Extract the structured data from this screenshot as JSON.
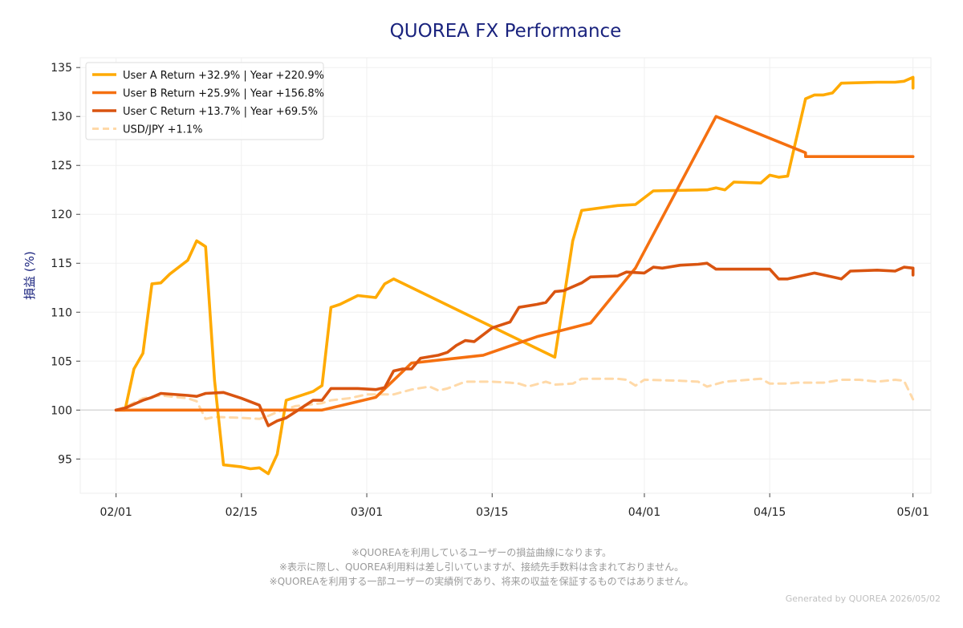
{
  "title": "QUOREA FX Performance",
  "chart_data": {
    "type": "line",
    "title": "QUOREA FX Performance",
    "ylabel": "損益 (%)",
    "xlabel": "",
    "ylim": [
      91.5,
      136
    ],
    "xlim": [
      "2025-01-28",
      "2025-05-03"
    ],
    "yticks": [
      95,
      100,
      105,
      110,
      115,
      120,
      125,
      130,
      135
    ],
    "xticks": [
      {
        "label": "02/01",
        "date": "2025-02-01"
      },
      {
        "label": "02/15",
        "date": "2025-02-15"
      },
      {
        "label": "03/01",
        "date": "2025-03-01"
      },
      {
        "label": "03/15",
        "date": "2025-03-15"
      },
      {
        "label": "04/01",
        "date": "2025-04-01"
      },
      {
        "label": "04/15",
        "date": "2025-04-15"
      },
      {
        "label": "05/01",
        "date": "2025-05-01"
      }
    ],
    "baseline": 100,
    "grid": true,
    "legend_position": "top-left",
    "series": [
      {
        "name": "User A Return +32.9% | Year +220.9%",
        "color": "#ffaa00",
        "dash": false,
        "points": [
          [
            "2025-02-01",
            100
          ],
          [
            "2025-02-02",
            100
          ],
          [
            "2025-02-03",
            104.2
          ],
          [
            "2025-02-04",
            105.8
          ],
          [
            "2025-02-05",
            112.9
          ],
          [
            "2025-02-06",
            113.0
          ],
          [
            "2025-02-07",
            113.9
          ],
          [
            "2025-02-09",
            115.3
          ],
          [
            "2025-02-10",
            117.3
          ],
          [
            "2025-02-11",
            116.7
          ],
          [
            "2025-02-12",
            103.0
          ],
          [
            "2025-02-13",
            94.4
          ],
          [
            "2025-02-15",
            94.2
          ],
          [
            "2025-02-16",
            94.0
          ],
          [
            "2025-02-17",
            94.1
          ],
          [
            "2025-02-18",
            93.5
          ],
          [
            "2025-02-19",
            95.5
          ],
          [
            "2025-02-20",
            101.0
          ],
          [
            "2025-02-22",
            101.6
          ],
          [
            "2025-02-23",
            101.9
          ],
          [
            "2025-02-24",
            102.5
          ],
          [
            "2025-02-25",
            110.5
          ],
          [
            "2025-02-26",
            110.8
          ],
          [
            "2025-02-28",
            111.7
          ],
          [
            "2025-03-02",
            111.5
          ],
          [
            "2025-03-03",
            112.9
          ],
          [
            "2025-03-04",
            113.4
          ],
          [
            "2025-03-22",
            105.4
          ],
          [
            "2025-03-24",
            117.3
          ],
          [
            "2025-03-25",
            120.4
          ],
          [
            "2025-03-29",
            120.9
          ],
          [
            "2025-03-31",
            121.0
          ],
          [
            "2025-04-02",
            122.4
          ],
          [
            "2025-04-08",
            122.5
          ],
          [
            "2025-04-09",
            122.7
          ],
          [
            "2025-04-10",
            122.5
          ],
          [
            "2025-04-11",
            123.3
          ],
          [
            "2025-04-14",
            123.2
          ],
          [
            "2025-04-15",
            124.0
          ],
          [
            "2025-04-16",
            123.8
          ],
          [
            "2025-04-17",
            123.9
          ],
          [
            "2025-04-19",
            131.8
          ],
          [
            "2025-04-20",
            132.2
          ],
          [
            "2025-04-21",
            132.2
          ],
          [
            "2025-04-22",
            132.4
          ],
          [
            "2025-04-23",
            133.4
          ],
          [
            "2025-04-27",
            133.5
          ],
          [
            "2025-04-29",
            133.5
          ],
          [
            "2025-04-30",
            133.6
          ],
          [
            "2025-05-01",
            134.0
          ],
          [
            "2025-05-01",
            132.9
          ]
        ]
      },
      {
        "name": "User B Return +25.9% | Year +156.8%",
        "color": "#f57010",
        "dash": false,
        "points": [
          [
            "2025-02-01",
            100
          ],
          [
            "2025-02-24",
            100
          ],
          [
            "2025-03-02",
            101.3
          ],
          [
            "2025-03-06",
            104.8
          ],
          [
            "2025-03-14",
            105.6
          ],
          [
            "2025-03-20",
            107.5
          ],
          [
            "2025-03-26",
            108.9
          ],
          [
            "2025-03-31",
            114.5
          ],
          [
            "2025-04-09",
            130.0
          ],
          [
            "2025-04-19",
            126.3
          ],
          [
            "2025-04-19",
            125.9
          ],
          [
            "2025-05-01",
            125.9
          ]
        ]
      },
      {
        "name": "User C Return +13.7% | Year +69.5%",
        "color": "#d95410",
        "dash": false,
        "points": [
          [
            "2025-02-01",
            100
          ],
          [
            "2025-02-02",
            100.2
          ],
          [
            "2025-02-03",
            100.6
          ],
          [
            "2025-02-04",
            101.0
          ],
          [
            "2025-02-05",
            101.3
          ],
          [
            "2025-02-06",
            101.7
          ],
          [
            "2025-02-09",
            101.5
          ],
          [
            "2025-02-10",
            101.4
          ],
          [
            "2025-02-11",
            101.7
          ],
          [
            "2025-02-13",
            101.8
          ],
          [
            "2025-02-15",
            101.2
          ],
          [
            "2025-02-17",
            100.5
          ],
          [
            "2025-02-18",
            98.4
          ],
          [
            "2025-02-19",
            98.9
          ],
          [
            "2025-02-20",
            99.2
          ],
          [
            "2025-02-21",
            99.8
          ],
          [
            "2025-02-23",
            101.0
          ],
          [
            "2025-02-24",
            101.0
          ],
          [
            "2025-02-25",
            102.2
          ],
          [
            "2025-02-28",
            102.2
          ],
          [
            "2025-03-02",
            102.1
          ],
          [
            "2025-03-03",
            102.3
          ],
          [
            "2025-03-04",
            104.0
          ],
          [
            "2025-03-05",
            104.2
          ],
          [
            "2025-03-06",
            104.2
          ],
          [
            "2025-03-07",
            105.3
          ],
          [
            "2025-03-09",
            105.6
          ],
          [
            "2025-03-10",
            105.9
          ],
          [
            "2025-03-11",
            106.6
          ],
          [
            "2025-03-12",
            107.1
          ],
          [
            "2025-03-13",
            107.0
          ],
          [
            "2025-03-15",
            108.4
          ],
          [
            "2025-03-17",
            109.0
          ],
          [
            "2025-03-18",
            110.5
          ],
          [
            "2025-03-20",
            110.8
          ],
          [
            "2025-03-21",
            111.0
          ],
          [
            "2025-03-22",
            112.1
          ],
          [
            "2025-03-23",
            112.2
          ],
          [
            "2025-03-25",
            113.0
          ],
          [
            "2025-03-26",
            113.6
          ],
          [
            "2025-03-29",
            113.7
          ],
          [
            "2025-03-30",
            114.1
          ],
          [
            "2025-04-01",
            114.0
          ],
          [
            "2025-04-02",
            114.6
          ],
          [
            "2025-04-03",
            114.5
          ],
          [
            "2025-04-05",
            114.8
          ],
          [
            "2025-04-07",
            114.9
          ],
          [
            "2025-04-08",
            115.0
          ],
          [
            "2025-04-09",
            114.4
          ],
          [
            "2025-04-14",
            114.4
          ],
          [
            "2025-04-15",
            114.4
          ],
          [
            "2025-04-16",
            113.4
          ],
          [
            "2025-04-17",
            113.4
          ],
          [
            "2025-04-20",
            114.0
          ],
          [
            "2025-04-22",
            113.6
          ],
          [
            "2025-04-23",
            113.4
          ],
          [
            "2025-04-24",
            114.2
          ],
          [
            "2025-04-27",
            114.3
          ],
          [
            "2025-04-29",
            114.2
          ],
          [
            "2025-04-30",
            114.6
          ],
          [
            "2025-05-01",
            114.5
          ],
          [
            "2025-05-01",
            113.8
          ]
        ]
      },
      {
        "name": "USD/JPY +1.1%",
        "color": "#ffd9a8",
        "dash": true,
        "points": [
          [
            "2025-02-01",
            100
          ],
          [
            "2025-02-02",
            100.3
          ],
          [
            "2025-02-04",
            101.2
          ],
          [
            "2025-02-06",
            101.5
          ],
          [
            "2025-02-08",
            101.3
          ],
          [
            "2025-02-09",
            101.2
          ],
          [
            "2025-02-10",
            100.9
          ],
          [
            "2025-02-11",
            99.1
          ],
          [
            "2025-02-12",
            99.3
          ],
          [
            "2025-02-15",
            99.2
          ],
          [
            "2025-02-17",
            99.1
          ],
          [
            "2025-02-18",
            99.4
          ],
          [
            "2025-02-19",
            99.8
          ],
          [
            "2025-02-21",
            100.4
          ],
          [
            "2025-02-23",
            100.6
          ],
          [
            "2025-02-24",
            100.7
          ],
          [
            "2025-02-25",
            101.0
          ],
          [
            "2025-02-27",
            101.2
          ],
          [
            "2025-03-01",
            101.6
          ],
          [
            "2025-03-04",
            101.6
          ],
          [
            "2025-03-06",
            102.1
          ],
          [
            "2025-03-08",
            102.4
          ],
          [
            "2025-03-09",
            102.0
          ],
          [
            "2025-03-10",
            102.2
          ],
          [
            "2025-03-12",
            102.9
          ],
          [
            "2025-03-15",
            102.9
          ],
          [
            "2025-03-17",
            102.8
          ],
          [
            "2025-03-18",
            102.7
          ],
          [
            "2025-03-19",
            102.4
          ],
          [
            "2025-03-21",
            102.9
          ],
          [
            "2025-03-22",
            102.6
          ],
          [
            "2025-03-24",
            102.7
          ],
          [
            "2025-03-25",
            103.2
          ],
          [
            "2025-03-29",
            103.2
          ],
          [
            "2025-03-30",
            103.1
          ],
          [
            "2025-03-31",
            102.5
          ],
          [
            "2025-04-01",
            103.1
          ],
          [
            "2025-04-05",
            103.0
          ],
          [
            "2025-04-07",
            102.9
          ],
          [
            "2025-04-08",
            102.4
          ],
          [
            "2025-04-10",
            102.9
          ],
          [
            "2025-04-14",
            103.2
          ],
          [
            "2025-04-15",
            102.7
          ],
          [
            "2025-04-17",
            102.7
          ],
          [
            "2025-04-18",
            102.8
          ],
          [
            "2025-04-21",
            102.8
          ],
          [
            "2025-04-23",
            103.1
          ],
          [
            "2025-04-25",
            103.1
          ],
          [
            "2025-04-27",
            102.9
          ],
          [
            "2025-04-29",
            103.1
          ],
          [
            "2025-04-30",
            103.0
          ],
          [
            "2025-05-01",
            101.1
          ]
        ]
      }
    ]
  },
  "notes": [
    "※QUOREAを利用しているユーザーの損益曲線になります。",
    "※表示に際し、QUOREA利用料は差し引いていますが、接続先手数料は含まれておりません。",
    "※QUOREAを利用する一部ユーザーの実績例であり、将来の収益を保証するものではありません。"
  ],
  "generated": "Generated by QUOREA  2026/05/02"
}
